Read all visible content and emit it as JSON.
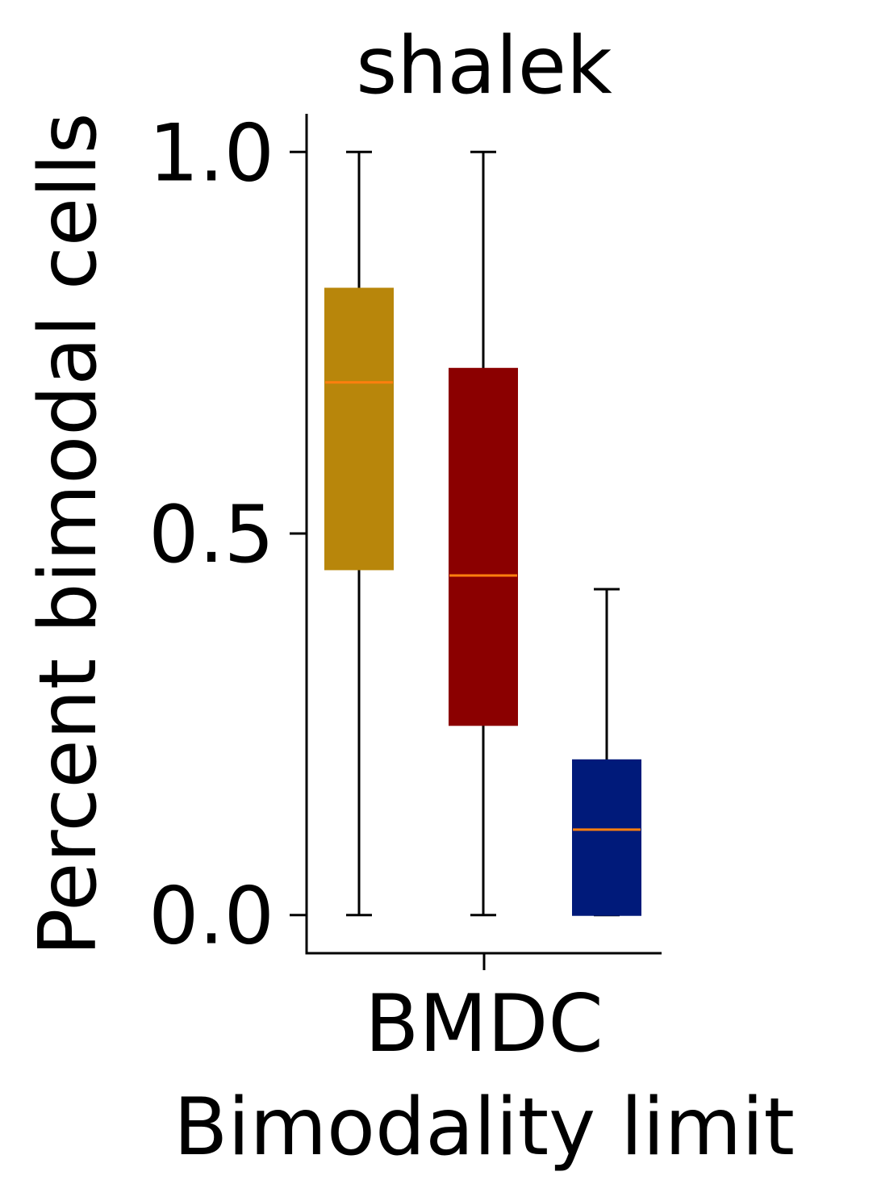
{
  "chart_data": {
    "type": "box",
    "title": "shalek",
    "xlabel": "Bimodality limit",
    "ylabel": "Percent bimodal cells",
    "categories": [
      "BMDC"
    ],
    "ylim": [
      -0.05,
      1.05
    ],
    "yticks": [
      {
        "value": 0.0,
        "label": "0.0"
      },
      {
        "value": 0.5,
        "label": "0.5"
      },
      {
        "value": 1.0,
        "label": "1.0"
      }
    ],
    "grid": false,
    "median_color": "#ff7f0e",
    "series": [
      {
        "color": "#b8860b",
        "whislo": 0.0,
        "q1": 0.453,
        "median": 0.698,
        "q3": 0.821,
        "whishi": 1.0
      },
      {
        "color": "#8b0000",
        "whislo": 0.0,
        "q1": 0.249,
        "median": 0.445,
        "q3": 0.716,
        "whishi": 1.0
      },
      {
        "color": "#001a7a",
        "whislo": 0.0,
        "q1": 0.0,
        "median": 0.112,
        "q3": 0.203,
        "whishi": 0.427
      }
    ]
  }
}
